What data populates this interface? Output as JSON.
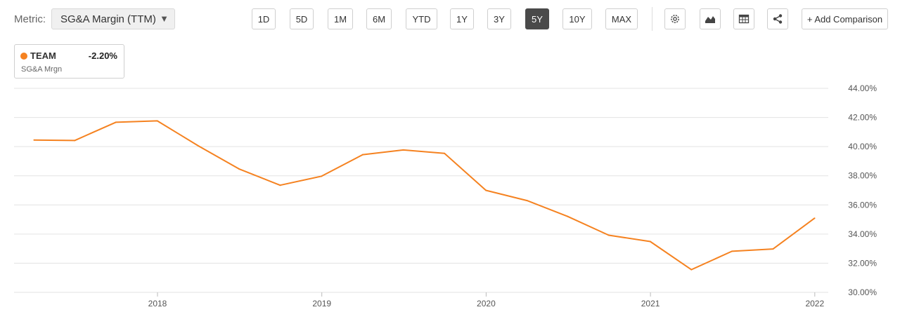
{
  "toolbar": {
    "metric_label": "Metric:",
    "metric_value": "SG&A Margin (TTM)",
    "ranges": [
      "1D",
      "5D",
      "1M",
      "6M",
      "YTD",
      "1Y",
      "3Y",
      "5Y",
      "10Y",
      "MAX"
    ],
    "active_range": "5Y",
    "icons": [
      "settings-icon",
      "chart-type-icon",
      "table-icon",
      "share-icon"
    ],
    "add_comparison": "+ Add Comparison"
  },
  "legend": {
    "ticker": "TEAM",
    "change": "-2.20%",
    "metric_short": "SG&A Mrgn"
  },
  "colors": {
    "series": "#f58220",
    "grid": "#e3e3e3",
    "active_button": "#4a4a4a"
  },
  "chart_data": {
    "type": "line",
    "title": "",
    "xlabel": "",
    "ylabel": "",
    "x_ticks": [
      "2018",
      "2019",
      "2020",
      "2021",
      "2022"
    ],
    "y_ticks": [
      "30.00%",
      "32.00%",
      "34.00%",
      "36.00%",
      "38.00%",
      "40.00%",
      "42.00%",
      "44.00%"
    ],
    "ylim": [
      30,
      44
    ],
    "xlim": [
      "2017-03",
      "2022-03"
    ],
    "grid": true,
    "y_axis_side": "right",
    "series": [
      {
        "name": "TEAM",
        "x": [
          "2017-03-31",
          "2017-06-30",
          "2017-09-30",
          "2017-12-31",
          "2018-03-31",
          "2018-06-30",
          "2018-09-30",
          "2018-12-31",
          "2019-03-31",
          "2019-06-30",
          "2019-09-30",
          "2019-12-31",
          "2020-03-31",
          "2020-06-30",
          "2020-09-30",
          "2020-12-31",
          "2021-03-31",
          "2021-06-30",
          "2021-09-30",
          "2021-12-31"
        ],
        "values": [
          40.45,
          40.42,
          41.67,
          41.77,
          40.05,
          38.47,
          37.35,
          37.97,
          39.45,
          39.77,
          39.54,
          37.0,
          36.3,
          35.21,
          33.92,
          33.49,
          31.56,
          32.82,
          32.98,
          35.09
        ]
      }
    ]
  }
}
